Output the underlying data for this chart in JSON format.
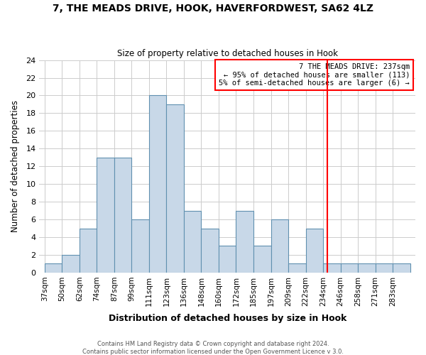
{
  "title": "7, THE MEADS DRIVE, HOOK, HAVERFORDWEST, SA62 4LZ",
  "subtitle": "Size of property relative to detached houses in Hook",
  "xlabel": "Distribution of detached houses by size in Hook",
  "ylabel": "Number of detached properties",
  "footer1": "Contains HM Land Registry data © Crown copyright and database right 2024.",
  "footer2": "Contains public sector information licensed under the Open Government Licence v 3.0.",
  "bar_labels": [
    "37sqm",
    "50sqm",
    "62sqm",
    "74sqm",
    "87sqm",
    "99sqm",
    "111sqm",
    "123sqm",
    "136sqm",
    "148sqm",
    "160sqm",
    "172sqm",
    "185sqm",
    "197sqm",
    "209sqm",
    "222sqm",
    "234sqm",
    "246sqm",
    "258sqm",
    "271sqm",
    "283sqm"
  ],
  "bar_values": [
    1,
    2,
    5,
    13,
    13,
    6,
    20,
    19,
    7,
    5,
    3,
    7,
    3,
    6,
    1,
    5,
    1,
    1,
    1,
    1,
    1
  ],
  "bar_color": "#c8d8e8",
  "bar_edge_color": "#6090b0",
  "grid_color": "#cccccc",
  "vline_color": "red",
  "annotation_title": "7 THE MEADS DRIVE: 237sqm",
  "annotation_line1": "← 95% of detached houses are smaller (113)",
  "annotation_line2": "5% of semi-detached houses are larger (6) →",
  "ylim": [
    0,
    24
  ],
  "yticks": [
    0,
    2,
    4,
    6,
    8,
    10,
    12,
    14,
    16,
    18,
    20,
    22,
    24
  ]
}
